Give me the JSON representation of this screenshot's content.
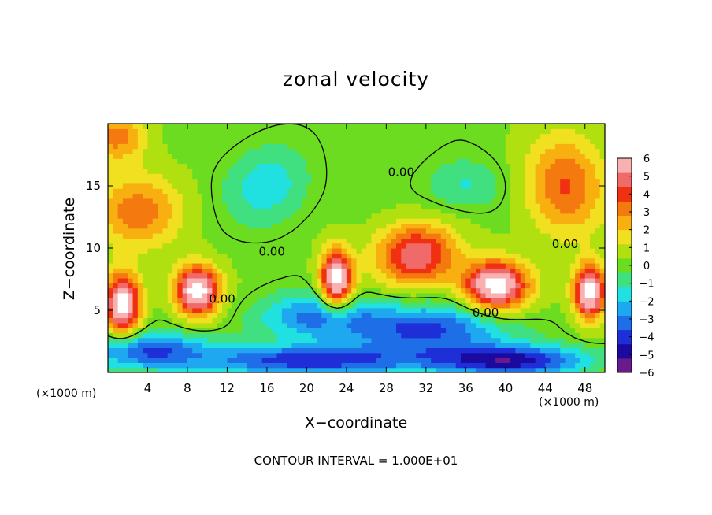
{
  "chart_data": {
    "type": "heatmap",
    "title": "zonal velocity",
    "xlabel": "X−coordinate",
    "ylabel": "Z−coordinate",
    "x_unit": "(×1000 m)",
    "y_unit": "(×1000 m)",
    "xlim": [
      0,
      50
    ],
    "ylim": [
      0,
      20
    ],
    "x_ticks": [
      4,
      8,
      12,
      16,
      20,
      24,
      28,
      32,
      36,
      40,
      44,
      48
    ],
    "y_ticks": [
      5,
      10,
      15
    ],
    "colorbar": {
      "min": -6,
      "max": 6,
      "ticks": [
        6,
        5,
        4,
        3,
        2,
        1,
        0,
        -1,
        -2,
        -3,
        -4,
        -5,
        -6
      ],
      "colors": [
        "#6a1a8a",
        "#1a0aa0",
        "#1f2fd8",
        "#1e6ee8",
        "#1ea8f0",
        "#20e0e0",
        "#40e080",
        "#6cdc20",
        "#b0e010",
        "#f0e020",
        "#f8b010",
        "#f47a10",
        "#f03010",
        "#f06a6a",
        "#f8b0b0"
      ]
    },
    "contour_labels": [
      "0.00",
      "0.00",
      "0.00",
      "0.00",
      "0.00"
    ],
    "footer": "CONTOUR INTERVAL = 1.000E+01",
    "blobs": [
      {
        "x": 9,
        "z": 6.6,
        "rx": 2.2,
        "rz": 2.0,
        "v": 7
      },
      {
        "x": 1.5,
        "z": 5.5,
        "rx": 1.8,
        "rz": 2.5,
        "v": 7
      },
      {
        "x": 23,
        "z": 7.5,
        "rx": 1.6,
        "rz": 2.4,
        "v": 7
      },
      {
        "x": 39,
        "z": 7.0,
        "rx": 3.2,
        "rz": 2.0,
        "v": 7
      },
      {
        "x": 48.5,
        "z": 6.5,
        "rx": 1.6,
        "rz": 2.2,
        "v": 7
      },
      {
        "x": 31,
        "z": 9.5,
        "rx": 4.0,
        "rz": 2.5,
        "v": 5
      },
      {
        "x": 46,
        "z": 15,
        "rx": 4.0,
        "rz": 4.0,
        "v": 3.5
      },
      {
        "x": 3,
        "z": 13,
        "rx": 4.5,
        "rz": 3.0,
        "v": 3
      },
      {
        "x": 1,
        "z": 19,
        "rx": 3.0,
        "rz": 2.0,
        "v": 3
      },
      {
        "x": 16,
        "z": 15,
        "rx": 4.0,
        "rz": 3.0,
        "v": -2
      },
      {
        "x": 36,
        "z": 15,
        "rx": 4.0,
        "rz": 2.0,
        "v": -1.5
      },
      {
        "x": 21,
        "z": 4.5,
        "rx": 6.0,
        "rz": 1.8,
        "v": -3
      },
      {
        "x": 32,
        "z": 3.5,
        "rx": 8.0,
        "rz": 2.0,
        "v": -4
      },
      {
        "x": 4,
        "z": 1.8,
        "rx": 6.0,
        "rz": 1.5,
        "v": -4
      },
      {
        "x": 20,
        "z": 1.0,
        "rx": 10.0,
        "rz": 1.2,
        "v": -4.5
      },
      {
        "x": 40,
        "z": 1.0,
        "rx": 8.0,
        "rz": 1.2,
        "v": -5
      }
    ]
  }
}
